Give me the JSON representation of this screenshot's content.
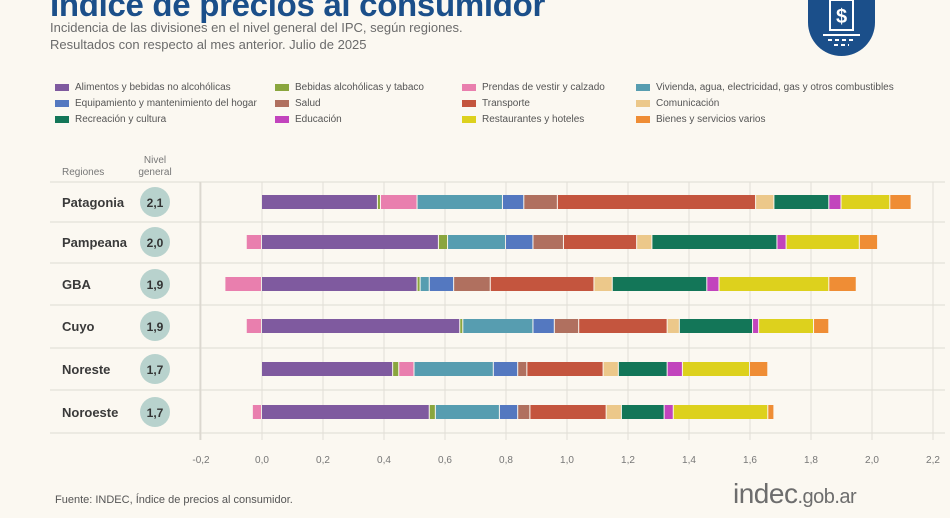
{
  "header": {
    "title": "Índice de precios al consumidor",
    "subtitle_1": "Incidencia de las divisiones en el nivel general del IPC, según regiones.",
    "subtitle_2": "Resultados con respecto al mes anterior. Julio de 2025",
    "icon": "dollar-document-icon"
  },
  "footer": {
    "source": "Fuente: INDEC, Índice de precios al consumidor.",
    "logo_main": "indec",
    "logo_suffix": ".gob.ar"
  },
  "chart_data": {
    "type": "bar",
    "orientation": "horizontal",
    "stacked": true,
    "row_header": "Regiones",
    "total_header": "Nivel general",
    "categories": [
      "Patagonia",
      "Pampeana",
      "GBA",
      "Cuyo",
      "Noreste",
      "Noroeste"
    ],
    "totals": [
      "2,1",
      "2,0",
      "1,9",
      "1,9",
      "1,7",
      "1,7"
    ],
    "xlim": [
      -0.2,
      2.2
    ],
    "xticks": [
      "-0,2",
      "0,0",
      "0,2",
      "0,4",
      "0,6",
      "0,8",
      "1,0",
      "1,2",
      "1,4",
      "1,6",
      "1,8",
      "2,0",
      "2,2"
    ],
    "grid": true,
    "legend_position": "top",
    "series": [
      {
        "name": "Alimentos y bebidas no alcohólicas",
        "color": "#7f5a9f",
        "values": [
          0.38,
          0.58,
          0.51,
          0.65,
          0.43,
          0.55
        ]
      },
      {
        "name": "Bebidas alcohólicas y tabaco",
        "color": "#8aa63e",
        "values": [
          0.01,
          0.03,
          0.01,
          0.01,
          0.02,
          0.02
        ]
      },
      {
        "name": "Prendas de vestir y calzado",
        "color": "#e97fae",
        "values": [
          0.12,
          -0.05,
          -0.12,
          -0.05,
          0.05,
          -0.03
        ]
      },
      {
        "name": "Vivienda, agua, electricidad, gas y otros combustibles",
        "color": "#579db0",
        "values": [
          0.28,
          0.19,
          0.03,
          0.23,
          0.26,
          0.21
        ]
      },
      {
        "name": "Equipamiento y mantenimiento del hogar",
        "color": "#5478c0",
        "values": [
          0.07,
          0.09,
          0.08,
          0.07,
          0.08,
          0.06
        ]
      },
      {
        "name": "Salud",
        "color": "#b0705f",
        "values": [
          0.11,
          0.1,
          0.12,
          0.08,
          0.03,
          0.04
        ]
      },
      {
        "name": "Transporte",
        "color": "#c4553e",
        "values": [
          0.65,
          0.24,
          0.34,
          0.29,
          0.25,
          0.25
        ]
      },
      {
        "name": "Comunicación",
        "color": "#ecc88a",
        "values": [
          0.06,
          0.05,
          0.06,
          0.04,
          0.05,
          0.05
        ]
      },
      {
        "name": "Recreación y cultura",
        "color": "#137658",
        "values": [
          0.18,
          0.41,
          0.31,
          0.24,
          0.16,
          0.14
        ]
      },
      {
        "name": "Educación",
        "color": "#c244bd",
        "values": [
          0.04,
          0.03,
          0.04,
          0.02,
          0.05,
          0.03
        ]
      },
      {
        "name": "Restaurantes y hoteles",
        "color": "#ddd11d",
        "values": [
          0.16,
          0.24,
          0.36,
          0.18,
          0.22,
          0.31
        ]
      },
      {
        "name": "Bienes y servicios varios",
        "color": "#ef8d35",
        "values": [
          0.07,
          0.06,
          0.09,
          0.05,
          0.06,
          0.02
        ]
      }
    ]
  }
}
